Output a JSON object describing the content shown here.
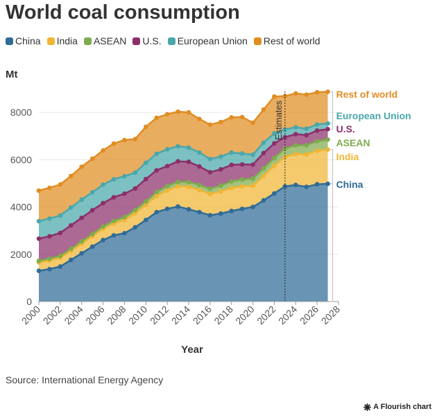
{
  "title": "World coal consumption",
  "source": "Source: International Energy Agency",
  "credit": "A Flourish chart",
  "credit_icon": "flourish-star-icon",
  "chart_data": {
    "type": "area",
    "stacked": true,
    "title": "World coal consumption",
    "xlabel": "Year",
    "ylabel": "Mt",
    "xlim": [
      2000,
      2028
    ],
    "ylim": [
      0,
      9000
    ],
    "x_ticks": [
      "2000",
      "2002",
      "2004",
      "2006",
      "2008",
      "2010",
      "2012",
      "2014",
      "2016",
      "2018",
      "2020",
      "2022",
      "2024",
      "2026",
      "2028"
    ],
    "y_ticks": [
      "0",
      "2000",
      "4000",
      "6000",
      "8000"
    ],
    "x": [
      2000,
      2001,
      2002,
      2003,
      2004,
      2005,
      2006,
      2007,
      2008,
      2009,
      2010,
      2011,
      2012,
      2013,
      2014,
      2015,
      2016,
      2017,
      2018,
      2019,
      2020,
      2021,
      2022,
      2023,
      2024,
      2025,
      2026,
      2027
    ],
    "annotation": {
      "label": "Estimates",
      "x": 2023
    },
    "series": [
      {
        "name": "China",
        "color": "#2f6b96",
        "values": [
          1300,
          1370,
          1480,
          1760,
          2040,
          2320,
          2600,
          2800,
          2890,
          3140,
          3450,
          3780,
          3920,
          4020,
          3900,
          3780,
          3650,
          3720,
          3830,
          3920,
          4000,
          4280,
          4570,
          4870,
          4930,
          4850,
          4960,
          4980
        ]
      },
      {
        "name": "India",
        "color": "#f0b535",
        "values": [
          360,
          370,
          380,
          390,
          410,
          440,
          470,
          500,
          560,
          600,
          640,
          680,
          780,
          850,
          950,
          940,
          900,
          940,
          980,
          950,
          900,
          1030,
          1170,
          1250,
          1310,
          1370,
          1420,
          1450
        ]
      },
      {
        "name": "ASEAN",
        "color": "#7eac4c",
        "values": [
          60,
          70,
          70,
          80,
          90,
          90,
          100,
          110,
          120,
          130,
          140,
          170,
          180,
          190,
          200,
          210,
          220,
          240,
          270,
          290,
          300,
          320,
          330,
          350,
          370,
          390,
          400,
          420
        ]
      },
      {
        "name": "U.S.",
        "color": "#8b2f6a",
        "values": [
          940,
          950,
          970,
          990,
          1000,
          1010,
          990,
          1000,
          990,
          910,
          950,
          920,
          850,
          870,
          860,
          780,
          700,
          690,
          700,
          640,
          590,
          650,
          620,
          480,
          470,
          430,
          450,
          440
        ]
      },
      {
        "name": "European Union",
        "color": "#4aa7aa",
        "values": [
          740,
          750,
          740,
          760,
          770,
          760,
          780,
          760,
          740,
          670,
          690,
          700,
          710,
          640,
          600,
          590,
          560,
          540,
          520,
          460,
          420,
          440,
          420,
          330,
          290,
          270,
          260,
          240
        ]
      },
      {
        "name": "Rest of world",
        "color": "#e08d22",
        "values": [
          1290,
          1300,
          1310,
          1330,
          1390,
          1420,
          1450,
          1510,
          1530,
          1420,
          1520,
          1520,
          1480,
          1460,
          1490,
          1420,
          1450,
          1460,
          1490,
          1540,
          1350,
          1400,
          1560,
          1410,
          1430,
          1440,
          1360,
          1340
        ]
      }
    ]
  }
}
